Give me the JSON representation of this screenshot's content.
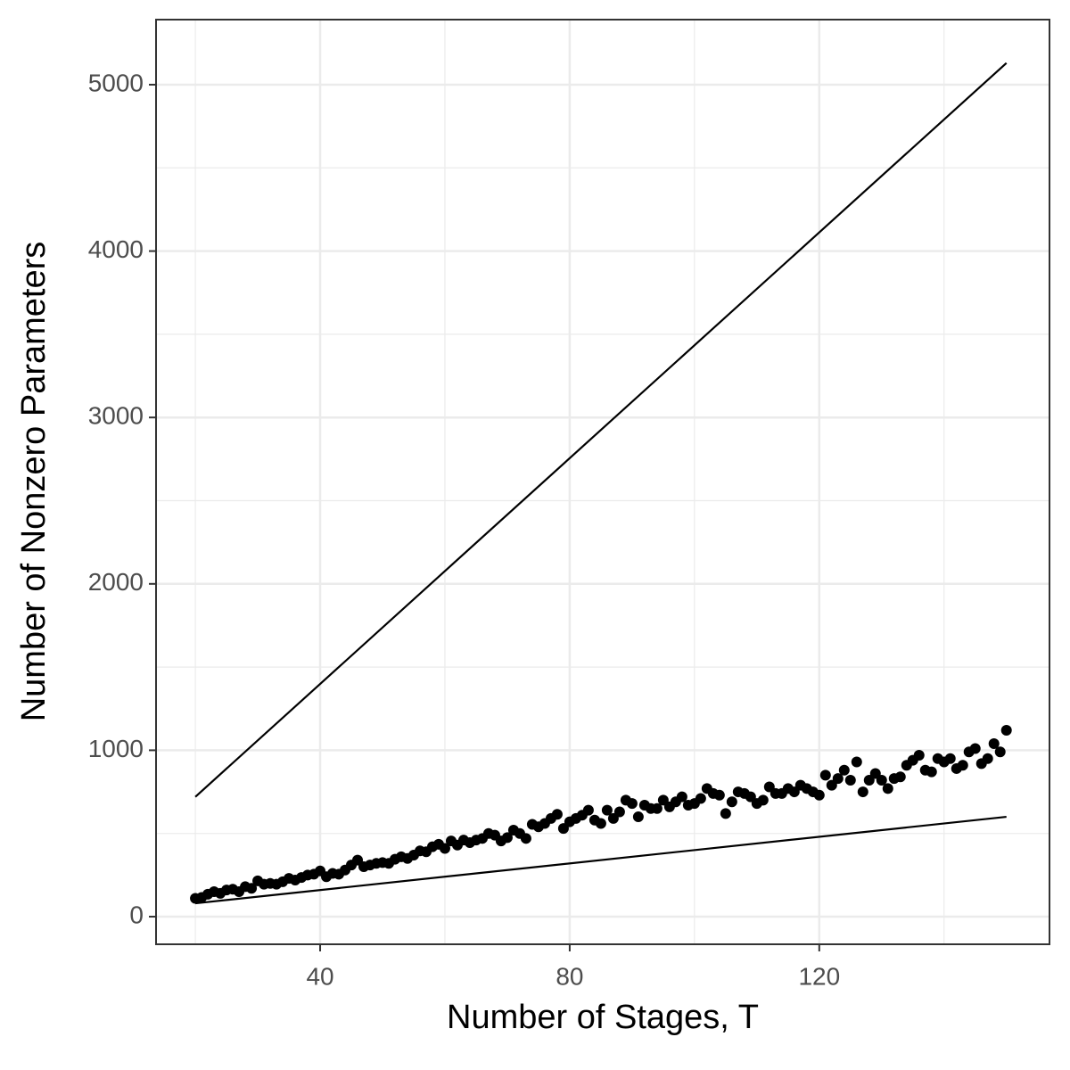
{
  "chart_data": {
    "type": "scatter",
    "x_label": "Number of Stages, T",
    "y_label": "Number of Nonzero Parameters",
    "x": [
      20,
      21,
      22,
      23,
      24,
      25,
      26,
      27,
      28,
      29,
      30,
      31,
      32,
      33,
      34,
      35,
      36,
      37,
      38,
      39,
      40,
      41,
      42,
      43,
      44,
      45,
      46,
      47,
      48,
      49,
      50,
      51,
      52,
      53,
      54,
      55,
      56,
      57,
      58,
      59,
      60,
      61,
      62,
      63,
      64,
      65,
      66,
      67,
      68,
      69,
      70,
      71,
      72,
      73,
      74,
      75,
      76,
      77,
      78,
      79,
      80,
      81,
      82,
      83,
      84,
      85,
      86,
      87,
      88,
      89,
      90,
      91,
      92,
      93,
      94,
      95,
      96,
      97,
      98,
      99,
      100,
      101,
      102,
      103,
      104,
      105,
      106,
      107,
      108,
      109,
      110,
      111,
      112,
      113,
      114,
      115,
      116,
      117,
      118,
      119,
      120,
      121,
      122,
      123,
      124,
      125,
      126,
      127,
      128,
      129,
      130,
      131,
      132,
      133,
      134,
      135,
      136,
      137,
      138,
      139,
      140,
      141,
      142,
      143,
      144,
      145,
      146,
      147,
      148,
      149,
      150
    ],
    "y": [
      110,
      115,
      135,
      150,
      140,
      160,
      165,
      150,
      180,
      170,
      215,
      195,
      200,
      195,
      210,
      230,
      220,
      235,
      250,
      255,
      275,
      240,
      260,
      255,
      280,
      310,
      340,
      300,
      310,
      320,
      325,
      320,
      345,
      360,
      350,
      370,
      395,
      390,
      420,
      435,
      410,
      455,
      430,
      460,
      445,
      460,
      470,
      500,
      490,
      455,
      475,
      520,
      500,
      470,
      555,
      540,
      560,
      590,
      615,
      530,
      570,
      590,
      610,
      640,
      580,
      560,
      640,
      590,
      630,
      700,
      680,
      600,
      670,
      650,
      650,
      700,
      660,
      690,
      720,
      670,
      680,
      710,
      770,
      740,
      730,
      620,
      690,
      750,
      740,
      720,
      680,
      700,
      780,
      740,
      740,
      770,
      750,
      790,
      770,
      750,
      730,
      850,
      790,
      830,
      880,
      820,
      930,
      750,
      820,
      860,
      820,
      770,
      830,
      840,
      910,
      940,
      970,
      880,
      870,
      950,
      930,
      950,
      890,
      910,
      990,
      1010,
      920,
      950,
      1040,
      990,
      1120
    ],
    "lines": [
      {
        "x": [
          20,
          150
        ],
        "y": [
          720,
          5130
        ]
      },
      {
        "x": [
          20,
          150
        ],
        "y": [
          80,
          600
        ]
      }
    ],
    "color": "#000000",
    "xlim": [
      13.7,
      156.9
    ],
    "ylim": [
      -166,
      5391
    ],
    "xticks": [
      40,
      80,
      120
    ],
    "yticks": [
      0,
      1000,
      2000,
      3000,
      4000,
      5000
    ],
    "minor_xticks": [
      20,
      60,
      100,
      140
    ],
    "minor_yticks": [
      500,
      1500,
      2500,
      3500,
      4500
    ],
    "grid": true
  }
}
